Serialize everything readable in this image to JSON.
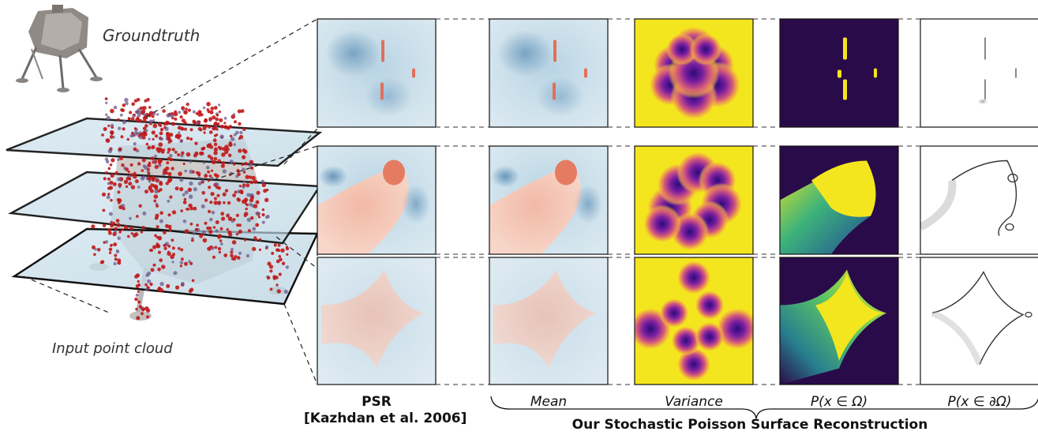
{
  "labels": {
    "groundtruth": "Groundtruth",
    "input_point_cloud": "Input point cloud"
  },
  "columns": [
    {
      "id": "psr",
      "label": "PSR"
    },
    {
      "id": "mean",
      "label": "Mean"
    },
    {
      "id": "variance",
      "label": "Variance"
    },
    {
      "id": "p_omega",
      "label": "P(x ∈ Ω)"
    },
    {
      "id": "p_boundary",
      "label": "P(x ∈ ∂Ω)"
    }
  ],
  "psr_citation": "[Kazhdan et al. 2006]",
  "group_title": "Our Stochastic Poisson Surface Reconstruction",
  "colors": {
    "diverging_blue": "#2b6a9e",
    "diverging_red": "#e1705a",
    "viridis_yellow": "#f4e61e",
    "viridis_dark": "#2a0b4a",
    "plasma_purple": "#6b1fa0",
    "points_red": "#c01818",
    "plane_fill": "#cfe3ee"
  }
}
